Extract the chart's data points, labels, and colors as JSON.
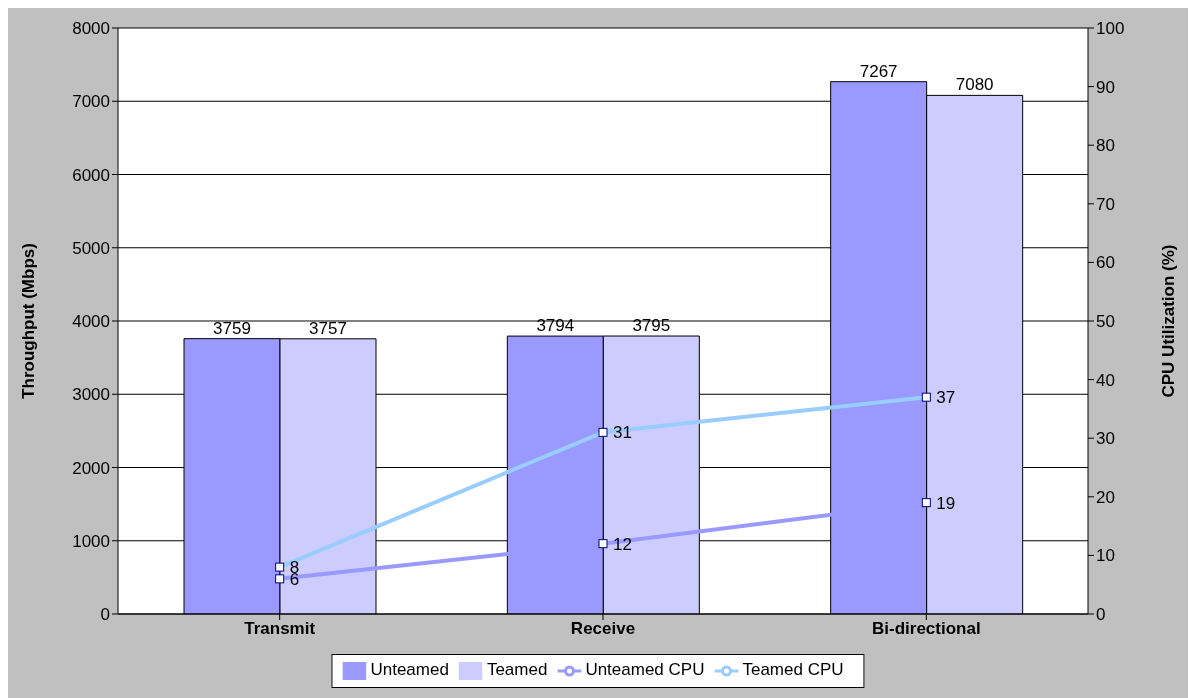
{
  "chart_data": {
    "type": "bar",
    "categories": [
      "Transmit",
      "Receive",
      "Bi-directional"
    ],
    "series": [
      {
        "name": "Unteamed",
        "color": "#9999ff",
        "values": [
          3759,
          3794,
          7267
        ]
      },
      {
        "name": "Teamed",
        "color": "#ccccff",
        "values": [
          3757,
          3795,
          7080
        ]
      },
      {
        "name": "Unteamed CPU",
        "type": "line",
        "axis": "y2",
        "color": "#9999ff",
        "values": [
          6,
          12,
          19
        ]
      },
      {
        "name": "Teamed CPU",
        "type": "line",
        "axis": "y2",
        "color": "#99ccff",
        "values": [
          8,
          31,
          37
        ]
      }
    ],
    "ylabel": "Throughput (Mbps)",
    "y2label": "CPU Utilization (%)",
    "ylim": [
      0,
      8000
    ],
    "yticks": [
      0,
      1000,
      2000,
      3000,
      4000,
      5000,
      6000,
      7000,
      8000
    ],
    "y2lim": [
      0,
      100
    ],
    "y2ticks": [
      0,
      10,
      20,
      30,
      40,
      50,
      60,
      70,
      80,
      90,
      100
    ],
    "grid": "y",
    "legend": "bottom",
    "marker": "square",
    "line_style": "solid",
    "data_labels": true
  }
}
